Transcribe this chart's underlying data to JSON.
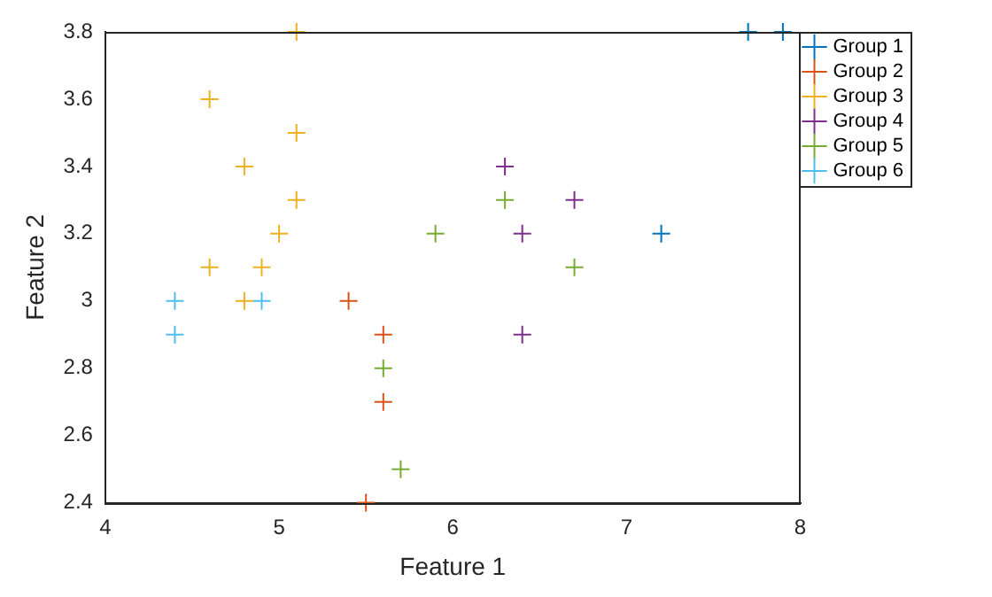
{
  "chart_data": {
    "type": "scatter",
    "xlabel": "Feature 1",
    "ylabel": "Feature 2",
    "xlim": [
      4,
      8
    ],
    "xticks": [
      4,
      5,
      6,
      7,
      8
    ],
    "ylim": [
      2.4,
      3.8
    ],
    "yticks": [
      2.4,
      2.6,
      2.8,
      3,
      3.2,
      3.4,
      3.6,
      3.8
    ],
    "grid": false,
    "legend": "top right",
    "marker": "cross",
    "series": [
      {
        "name": "Group 1",
        "color": "#0072bd",
        "x": [
          7.7,
          7.9,
          7.2
        ],
        "values": [
          3.8,
          3.8,
          3.2
        ]
      },
      {
        "name": "Group 2",
        "color": "#d95319",
        "x": [
          5.4,
          5.6,
          5.6,
          5.5
        ],
        "values": [
          3.0,
          2.9,
          2.7,
          2.4
        ]
      },
      {
        "name": "Group 3",
        "color": "#edb120",
        "x": [
          5.1,
          4.6,
          5.1,
          4.8,
          5.1,
          5.0,
          4.6,
          4.9,
          4.8
        ],
        "values": [
          3.8,
          3.6,
          3.5,
          3.4,
          3.3,
          3.2,
          3.1,
          3.1,
          3.0
        ]
      },
      {
        "name": "Group 4",
        "color": "#7e2f8e",
        "x": [
          6.3,
          6.7,
          6.4,
          6.4
        ],
        "values": [
          3.4,
          3.3,
          3.2,
          2.9
        ]
      },
      {
        "name": "Group 5",
        "color": "#77ac30",
        "x": [
          6.3,
          5.9,
          6.7,
          5.6,
          5.7
        ],
        "values": [
          3.3,
          3.2,
          3.1,
          2.8,
          2.5
        ]
      },
      {
        "name": "Group 6",
        "color": "#4dbeee",
        "x": [
          4.4,
          4.9,
          4.4
        ],
        "values": [
          3.0,
          3.0,
          2.9
        ]
      }
    ]
  }
}
